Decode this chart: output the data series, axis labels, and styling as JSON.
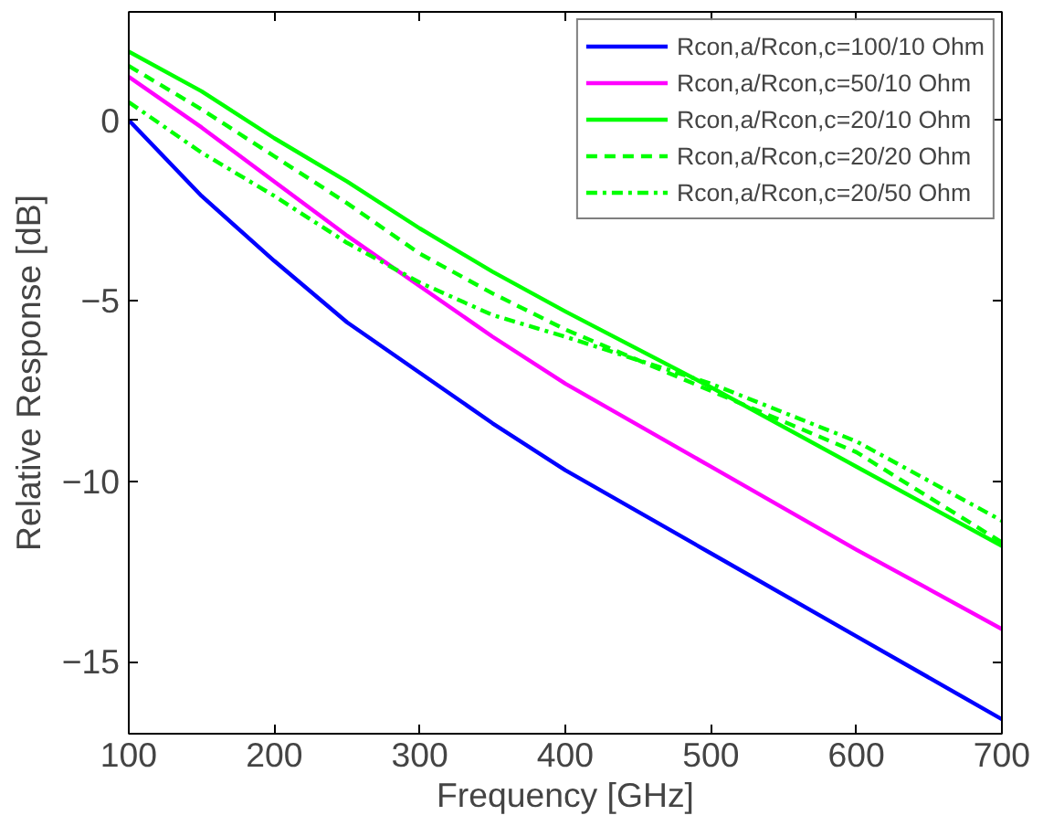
{
  "chart_data": {
    "type": "line",
    "xlabel": "Frequency [GHz]",
    "ylabel": "Relative Response [dB]",
    "x": [
      100,
      150,
      200,
      250,
      300,
      350,
      400,
      500,
      600,
      700
    ],
    "series": [
      {
        "name": "Rcon,a/Rcon,c=100/10 Ohm",
        "color": "#0000ff",
        "line_style": "solid",
        "values": [
          0,
          -2.1,
          -3.9,
          -5.6,
          -7.0,
          -8.4,
          -9.7,
          -12.0,
          -14.3,
          -16.6
        ]
      },
      {
        "name": "Rcon,a/Rcon,c=50/10 Ohm",
        "color": "#ff00ff",
        "line_style": "solid",
        "values": [
          1.2,
          -0.2,
          -1.7,
          -3.2,
          -4.6,
          -6.0,
          -7.3,
          -9.6,
          -11.9,
          -14.1
        ]
      },
      {
        "name": "Rcon,a/Rcon,c=20/10 Ohm",
        "color": "#00ff00",
        "line_style": "solid",
        "values": [
          1.9,
          0.8,
          -0.5,
          -1.7,
          -3.0,
          -4.2,
          -5.3,
          -7.4,
          -9.6,
          -11.8
        ]
      },
      {
        "name": "Rcon,a/Rcon,c=20/20 Ohm",
        "color": "#00ff00",
        "line_style": "dashed",
        "values": [
          1.5,
          0.3,
          -1.0,
          -2.3,
          -3.7,
          -4.8,
          -5.8,
          -7.5,
          -9.2,
          -11.7
        ]
      },
      {
        "name": "Rcon,a/Rcon,c=20/50 Ohm",
        "color": "#00ff00",
        "line_style": "dashdot",
        "values": [
          0.5,
          -0.9,
          -2.1,
          -3.4,
          -4.5,
          -5.4,
          -6.0,
          -7.3,
          -8.9,
          -11.1
        ]
      }
    ],
    "xlim": [
      100,
      700
    ],
    "xticks": [
      100,
      200,
      300,
      400,
      500,
      600,
      700
    ],
    "ylim": [
      -17,
      3
    ],
    "yticks": [
      -15,
      -10,
      -5,
      0
    ],
    "grid": false,
    "legend": "top right"
  }
}
